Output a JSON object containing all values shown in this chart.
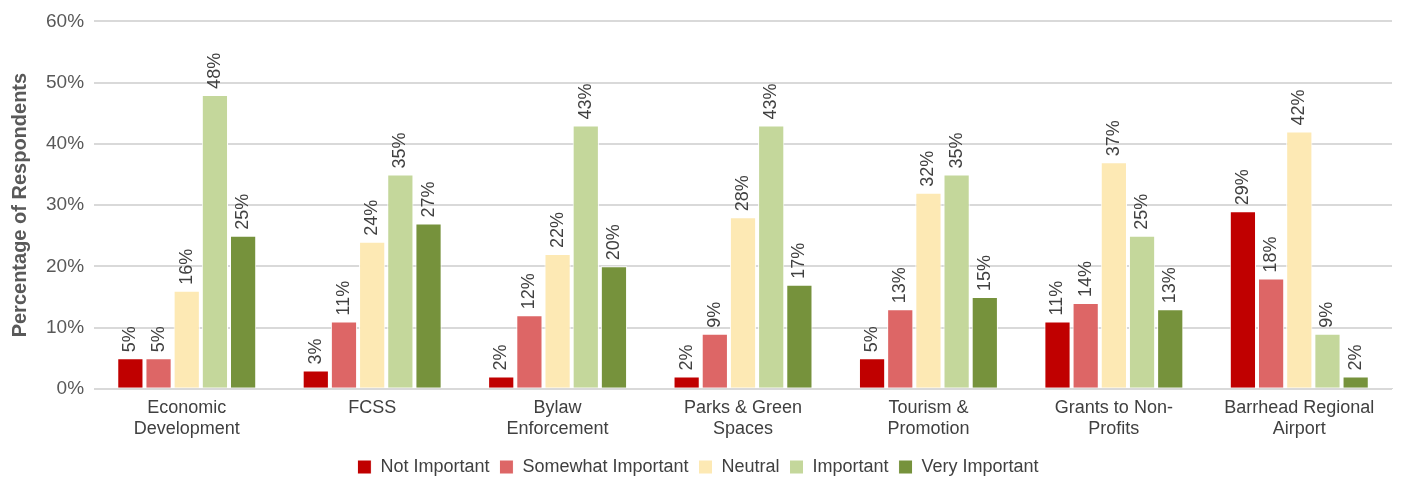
{
  "chart_data": {
    "type": "bar",
    "ylabel": "Percentage of Respondents",
    "categories": [
      "Economic Development",
      "FCSS",
      "Bylaw Enforcement",
      "Parks & Green Spaces",
      "Tourism & Promotion",
      "Grants to Non-Profits",
      "Barrhead Regional Airport"
    ],
    "series": [
      {
        "name": "Not Important",
        "color": "#c00000",
        "values": [
          5,
          3,
          2,
          2,
          5,
          11,
          29
        ],
        "value_labels": [
          "5%",
          "3%",
          "2%",
          "2%",
          "5%",
          "11%",
          "29%"
        ]
      },
      {
        "name": "Somewhat Important",
        "color": "#dd6666",
        "values": [
          5,
          11,
          12,
          9,
          13,
          14,
          18
        ],
        "value_labels": [
          "5%",
          "11%",
          "12%",
          "9%",
          "13%",
          "14%",
          "18%"
        ]
      },
      {
        "name": "Neutral",
        "color": "#fde9b4",
        "values": [
          16,
          24,
          22,
          28,
          32,
          37,
          42
        ],
        "value_labels": [
          "16%",
          "24%",
          "22%",
          "28%",
          "32%",
          "37%",
          "42%"
        ]
      },
      {
        "name": "Important",
        "color": "#c4d79b",
        "values": [
          48,
          35,
          43,
          43,
          35,
          25,
          9
        ],
        "value_labels": [
          "48%",
          "35%",
          "43%",
          "43%",
          "35%",
          "25%",
          "9%"
        ]
      },
      {
        "name": "Very Important",
        "color": "#76923c",
        "values": [
          25,
          27,
          20,
          17,
          15,
          13,
          2
        ],
        "value_labels": [
          "25%",
          "27%",
          "20%",
          "17%",
          "15%",
          "13%",
          "2%"
        ]
      }
    ],
    "ylim": [
      0,
      60
    ],
    "yticks": [
      {
        "value": 0,
        "label": "0%"
      },
      {
        "value": 10,
        "label": "10%"
      },
      {
        "value": 20,
        "label": "20%"
      },
      {
        "value": 30,
        "label": "30%"
      },
      {
        "value": 40,
        "label": "40%"
      },
      {
        "value": 50,
        "label": "50%"
      },
      {
        "value": 60,
        "label": "60%"
      }
    ],
    "grid": "y",
    "legend": "bottom"
  }
}
